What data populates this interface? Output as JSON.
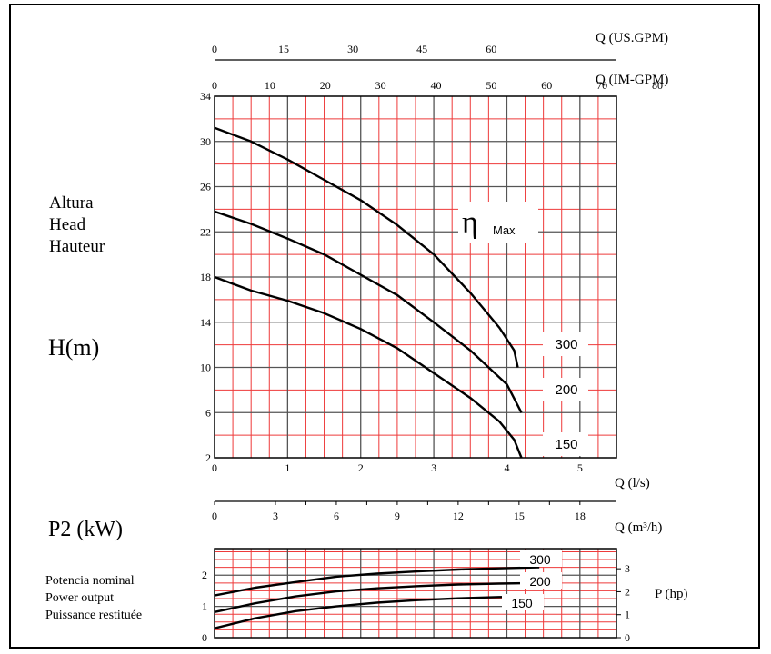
{
  "left_labels": {
    "head": [
      "Altura",
      "Head",
      "Hauteur"
    ],
    "h_unit": "H(m)",
    "p2_unit": "P2 (kW)",
    "power": [
      "Potencia nominal",
      "Power output",
      "Puissance restituée"
    ]
  },
  "chart_data": [
    {
      "type": "line",
      "panel": "head",
      "xlabel": "Q (l/s)",
      "ylabel": "H(m)",
      "xlim": [
        0,
        5.5
      ],
      "ylim": [
        2,
        34
      ],
      "x_ticks": [
        0,
        1,
        2,
        3,
        4,
        5
      ],
      "y_ticks": [
        2,
        6,
        10,
        14,
        18,
        22,
        26,
        30,
        34
      ],
      "secondary_axes": [
        {
          "label": "Q (US.GPM)",
          "ticks": [
            0,
            15,
            30,
            45,
            60
          ],
          "scale_per_lps": 15.85
        },
        {
          "label": "Q (IM-GPM)",
          "ticks": [
            0,
            10,
            20,
            30,
            40,
            50,
            60,
            70,
            80
          ],
          "scale_per_lps": 13.2
        }
      ],
      "annotation": "η",
      "annotation_sub": "Max",
      "series": [
        {
          "name": "300",
          "x": [
            0,
            0.5,
            1.0,
            1.5,
            2.0,
            2.5,
            3.0,
            3.5,
            3.9,
            4.1,
            4.15
          ],
          "y": [
            31.2,
            30.0,
            28.4,
            26.6,
            24.8,
            22.6,
            20.0,
            16.6,
            13.5,
            11.5,
            10.0
          ]
        },
        {
          "name": "200",
          "x": [
            0,
            0.5,
            1.0,
            1.5,
            2.0,
            2.5,
            3.0,
            3.5,
            4.0,
            4.2
          ],
          "y": [
            23.8,
            22.7,
            21.4,
            20.0,
            18.2,
            16.4,
            14.0,
            11.5,
            8.5,
            6.0
          ]
        },
        {
          "name": "150",
          "x": [
            0,
            0.5,
            1.0,
            1.5,
            2.0,
            2.5,
            3.0,
            3.5,
            3.9,
            4.1,
            4.2
          ],
          "y": [
            18.0,
            16.8,
            15.9,
            14.8,
            13.4,
            11.7,
            9.5,
            7.3,
            5.2,
            3.6,
            2.0
          ]
        }
      ]
    },
    {
      "type": "line",
      "panel": "power",
      "xlabel": "Q (m³/h)",
      "xlim": [
        0,
        19.8
      ],
      "x_ticks": [
        0,
        3,
        6,
        9,
        12,
        15,
        18
      ],
      "ylim": [
        0,
        2.85
      ],
      "y_ticks": [
        0,
        1,
        2
      ],
      "right_axis": {
        "label": "P (hp)",
        "ticks": [
          0,
          1,
          2,
          3
        ],
        "scale_per_kw": 1.36
      },
      "series": [
        {
          "name": "300",
          "x": [
            0,
            2,
            4,
            6,
            8,
            10,
            12,
            14,
            16
          ],
          "y": [
            1.35,
            1.6,
            1.78,
            1.95,
            2.05,
            2.12,
            2.18,
            2.22,
            2.25
          ]
        },
        {
          "name": "200",
          "x": [
            0,
            2,
            4,
            6,
            8,
            10,
            12,
            14,
            16
          ],
          "y": [
            0.82,
            1.1,
            1.32,
            1.48,
            1.58,
            1.65,
            1.7,
            1.73,
            1.75
          ]
        },
        {
          "name": "150",
          "x": [
            0,
            2,
            4,
            6,
            8,
            10,
            12,
            14,
            16
          ],
          "y": [
            0.3,
            0.62,
            0.85,
            1.0,
            1.12,
            1.2,
            1.26,
            1.3,
            1.32
          ]
        }
      ]
    }
  ],
  "colors": {
    "grid_minor": "#ee3a3a",
    "grid_major": "#555555",
    "curve": "#000000"
  }
}
